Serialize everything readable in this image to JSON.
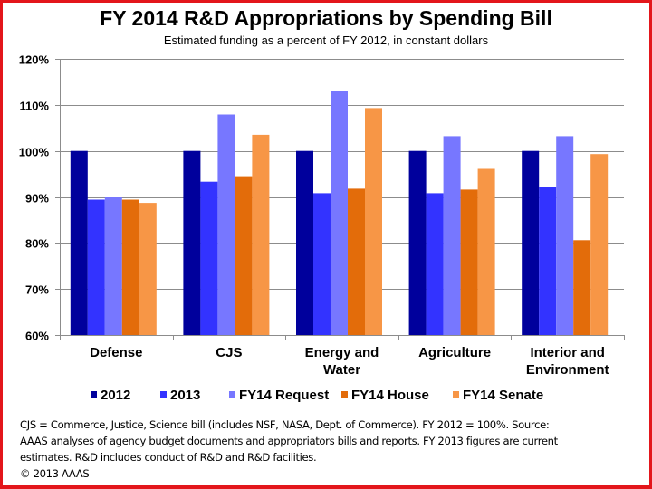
{
  "chart_data": {
    "type": "bar",
    "title": "FY 2014 R&D Appropriations by Spending Bill",
    "subtitle": "Estimated funding as a percent of FY 2012, in constant dollars",
    "xlabel": "",
    "ylabel": "",
    "ylim": [
      60,
      120
    ],
    "yticks": [
      60,
      70,
      80,
      90,
      100,
      110,
      120
    ],
    "ytick_labels": [
      "60%",
      "70%",
      "80%",
      "90%",
      "100%",
      "110%",
      "120%"
    ],
    "grid": true,
    "legend_position": "bottom",
    "categories": [
      [
        "Defense"
      ],
      [
        "CJS"
      ],
      [
        "Energy and",
        "Water"
      ],
      [
        "Agriculture"
      ],
      [
        "Interior and",
        "Environment"
      ]
    ],
    "category_names": [
      "Defense",
      "CJS",
      "Energy and Water",
      "Agriculture",
      "Interior and Environment"
    ],
    "series": [
      {
        "name": "2012",
        "color": "#00009c",
        "values": [
          100,
          100,
          100,
          100,
          100
        ]
      },
      {
        "name": "2013",
        "color": "#3333ff",
        "values": [
          89.4,
          93.3,
          90.8,
          90.8,
          92.2
        ]
      },
      {
        "name": "FY14 Request",
        "color": "#7777ff",
        "values": [
          90.0,
          107.9,
          113.0,
          103.2,
          103.2
        ]
      },
      {
        "name": "FY14 House",
        "color": "#e36c0a",
        "values": [
          89.4,
          94.5,
          91.8,
          91.6,
          80.6
        ]
      },
      {
        "name": "FY14 Senate",
        "color": "#f79646",
        "values": [
          88.7,
          103.5,
          109.3,
          96.1,
          99.3
        ]
      }
    ]
  },
  "footnote": {
    "lines": [
      "CJS = Commerce, Justice, Science bill (includes  NSF, NASA, Dept. of Commerce). FY 2012 = 100%. Source:",
      "AAAS analyses of agency budget documents and appropriators  bills  and reports. FY 2013 figures  are current",
      "estimates. R&D includes  conduct of R&D and R&D facilities.",
      "© 2013 AAAS"
    ]
  },
  "colors": {
    "border": "#e3161b",
    "gridline": "#8c8c8c"
  }
}
